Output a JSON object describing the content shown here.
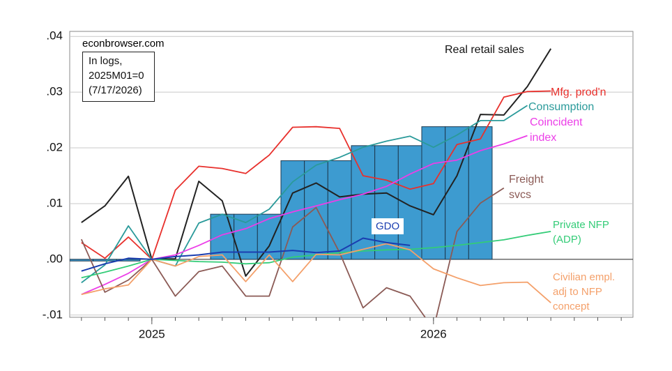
{
  "chart_data": {
    "type": "line",
    "source": "econbrowser.com",
    "notes": [
      "In logs,",
      "2025M01=0",
      "(7/17/2026)"
    ],
    "categories": [
      null,
      null,
      null,
      "2025",
      null,
      null,
      null,
      null,
      null,
      null,
      null,
      null,
      null,
      null,
      null,
      "2026",
      null,
      null,
      null,
      null,
      null,
      null,
      null,
      null
    ],
    "ylim": [
      -0.0104,
      0.0409
    ],
    "yticks": [
      {
        "value": -0.01,
        "label": "-.01"
      },
      {
        "value": 0,
        "label": ".00"
      },
      {
        "value": 0.01,
        "label": ".01"
      },
      {
        "value": 0.02,
        "label": ".02"
      },
      {
        "value": 0.03,
        "label": ".03"
      },
      {
        "value": 0.04,
        "label": ".04"
      }
    ],
    "grid": true,
    "series": [
      {
        "kind": "bar",
        "color": "#3d9bd0",
        "values": [
          -0.0003,
          -0.0003,
          -0.0003,
          null,
          null,
          null,
          0.0081,
          0.0081,
          0.0081,
          0.0177,
          0.0177,
          0.0177,
          0.0204,
          0.0204,
          0.0204,
          0.0238,
          0.0238,
          0.0238,
          null,
          null,
          null,
          null,
          null,
          null
        ]
      },
      {
        "name": "Real retail sales",
        "color": "#222222",
        "values": [
          0.0066,
          0.0096,
          0.0149,
          0,
          0.0001,
          0.014,
          0.0105,
          -0.003,
          0.0024,
          0.0119,
          0.0137,
          0.0112,
          0.0117,
          0.0119,
          0.0096,
          0.008,
          0.015,
          0.026,
          0.0259,
          0.031,
          0.0378,
          null,
          null,
          null
        ]
      },
      {
        "name": "Mfg. prod'n",
        "color": "#e8302c",
        "values": [
          0.003,
          0.0002,
          0.004,
          0,
          0.0124,
          0.0167,
          0.0163,
          0.0154,
          0.0187,
          0.0237,
          0.0238,
          0.0235,
          0.015,
          0.0142,
          0.0126,
          0.0136,
          0.0206,
          0.0216,
          0.0291,
          0.0301,
          0.0302,
          null,
          null,
          null
        ]
      },
      {
        "name": "Consumption",
        "color": "#2a9a9a",
        "values": [
          -0.0042,
          -0.001,
          0.006,
          0,
          -0.0012,
          0.0065,
          0.0081,
          0.0066,
          0.009,
          0.0139,
          0.0169,
          0.0183,
          0.0201,
          0.0212,
          0.0221,
          0.0201,
          0.0223,
          0.0249,
          0.0249,
          0.0276,
          null,
          null,
          null,
          null
        ]
      },
      {
        "name": "Coincident index",
        "color": "#ec3ee8",
        "values": [
          -0.0063,
          -0.0045,
          -0.0025,
          0,
          0.0008,
          0.0025,
          0.0044,
          0.0055,
          0.0073,
          0.0085,
          0.0096,
          0.0107,
          0.0117,
          0.0131,
          0.0153,
          0.0172,
          0.0178,
          0.0195,
          0.0207,
          0.0222,
          null,
          null,
          null,
          null
        ]
      },
      {
        "name": "Freight svcs",
        "color": "#8b5a55",
        "values": [
          0.0036,
          -0.0059,
          -0.0037,
          0,
          -0.0066,
          -0.0022,
          -0.0012,
          -0.0066,
          -0.0066,
          0.0058,
          0.0093,
          0.0012,
          -0.0087,
          -0.0051,
          -0.0066,
          -0.0125,
          0.005,
          0.0101,
          0.0128,
          null,
          null,
          null,
          null,
          null
        ]
      },
      {
        "name": "Private NFP (ADP)",
        "color": "#33cc77",
        "values": [
          -0.0033,
          -0.0023,
          -0.0012,
          0,
          -0.0002,
          -0.0004,
          -0.0005,
          -0.0008,
          -0.0006,
          0.0004,
          0.0008,
          0.0012,
          0.0015,
          0.0017,
          0.0018,
          0.0021,
          0.0025,
          0.003,
          0.0035,
          0.0043,
          0.005,
          null,
          null,
          null
        ]
      },
      {
        "name": "Civilian empl. adj to NFP concept",
        "color": "#f4a06a",
        "values": [
          -0.0063,
          -0.0053,
          -0.0046,
          0,
          -0.0012,
          0.0005,
          0.0008,
          -0.004,
          0.0008,
          -0.004,
          0.0009,
          0.0008,
          0.0018,
          0.0028,
          0.0017,
          -0.0017,
          -0.0033,
          -0.0047,
          -0.0042,
          -0.0041,
          -0.0078,
          null,
          null,
          null
        ]
      },
      {
        "name": "GDO",
        "color": "#1a3db0",
        "values": [
          -0.0021,
          -0.0008,
          0.0002,
          0,
          0.0005,
          0.0008,
          0.0013,
          0.0013,
          0.0013,
          0.0016,
          0.0012,
          0.0015,
          0.0038,
          0.003,
          0.0025,
          null,
          null,
          null,
          null,
          null,
          null,
          null,
          null,
          null
        ]
      }
    ]
  }
}
